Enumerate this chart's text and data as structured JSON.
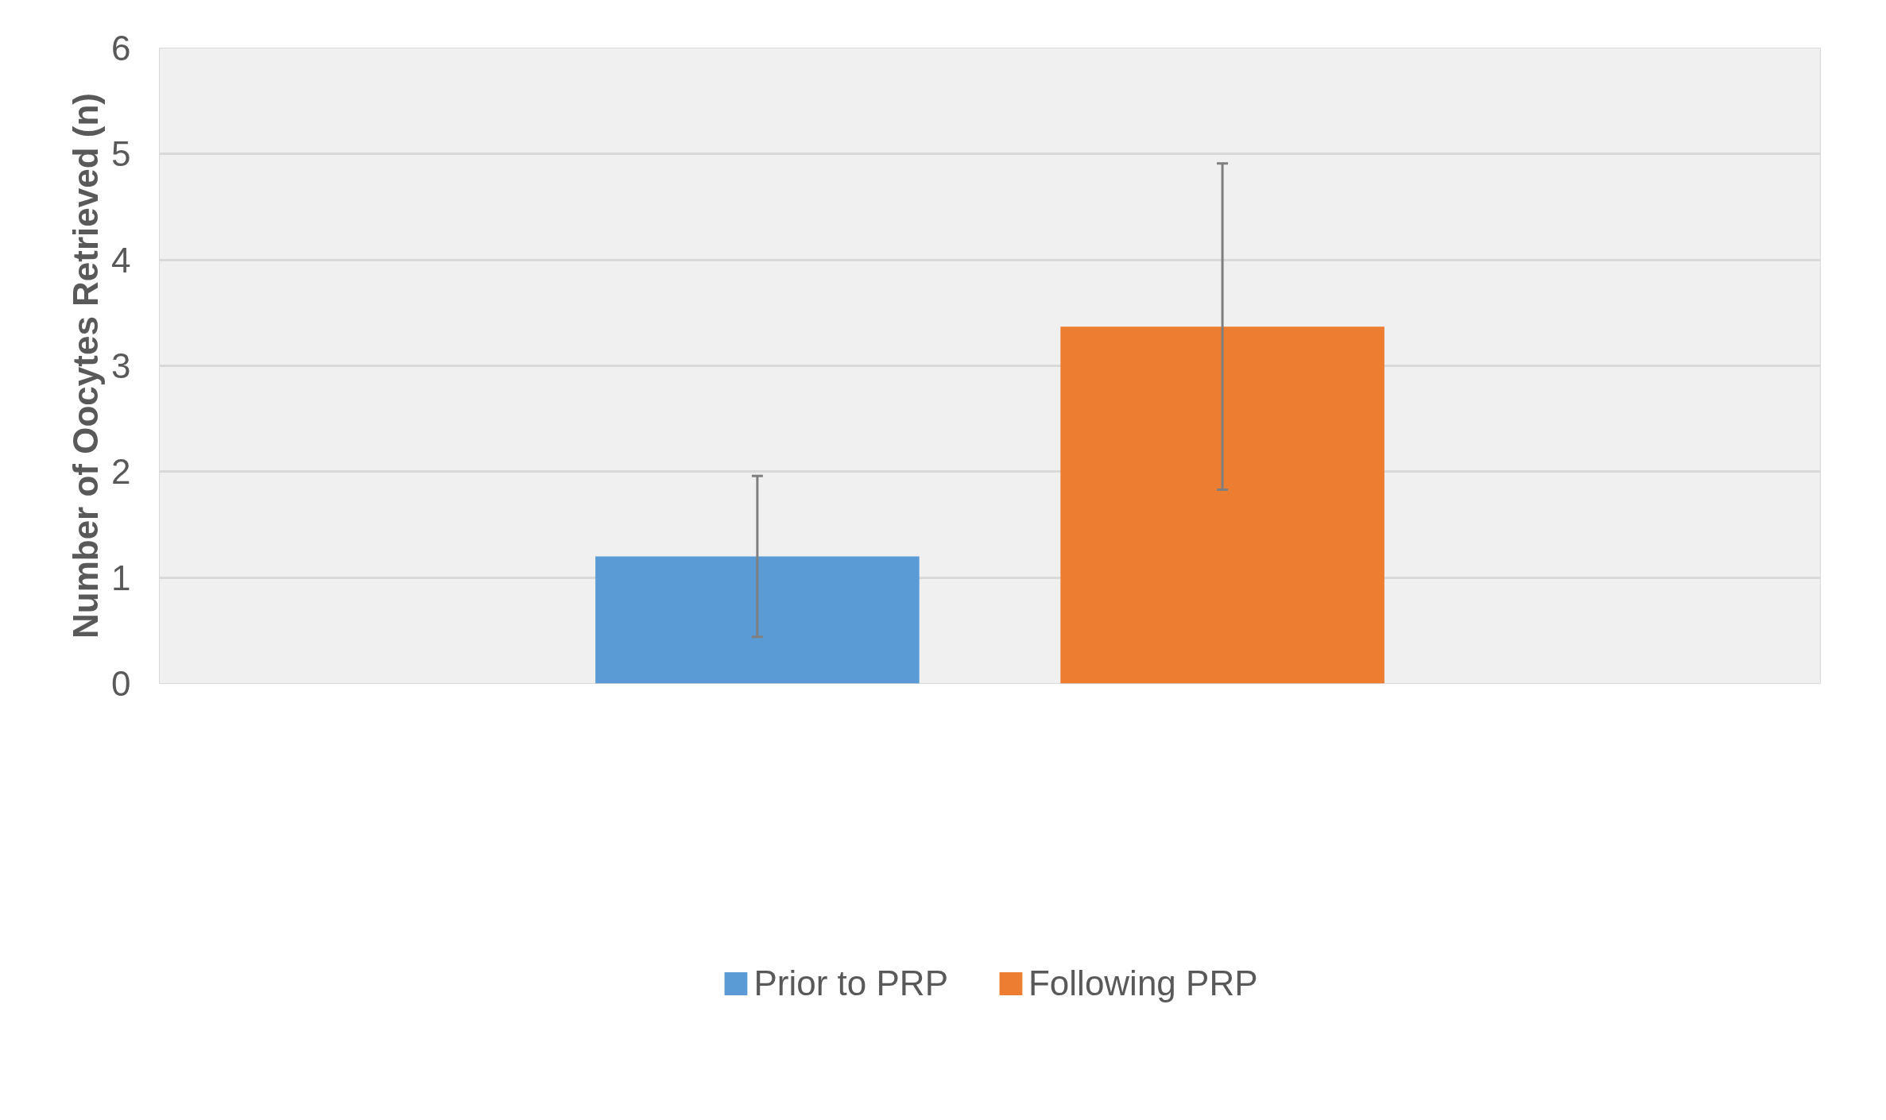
{
  "chart_data": {
    "type": "bar",
    "ylabel": "Number of Oocytes Retrieved (n)",
    "categories": [
      null
    ],
    "series": [
      {
        "name": "Prior to PRP",
        "color": "#5b9bd5",
        "values": [
          1.2
        ],
        "errors": [
          0.76
        ]
      },
      {
        "name": "Following PRP",
        "color": "#ed7d31",
        "values": [
          3.37
        ],
        "errors": [
          1.54
        ]
      }
    ],
    "ylim": [
      0,
      6
    ],
    "yticks": [
      0,
      1,
      2,
      3,
      4,
      5,
      6
    ],
    "grid": "y",
    "legend": "bottom",
    "tick_labels": "y"
  }
}
